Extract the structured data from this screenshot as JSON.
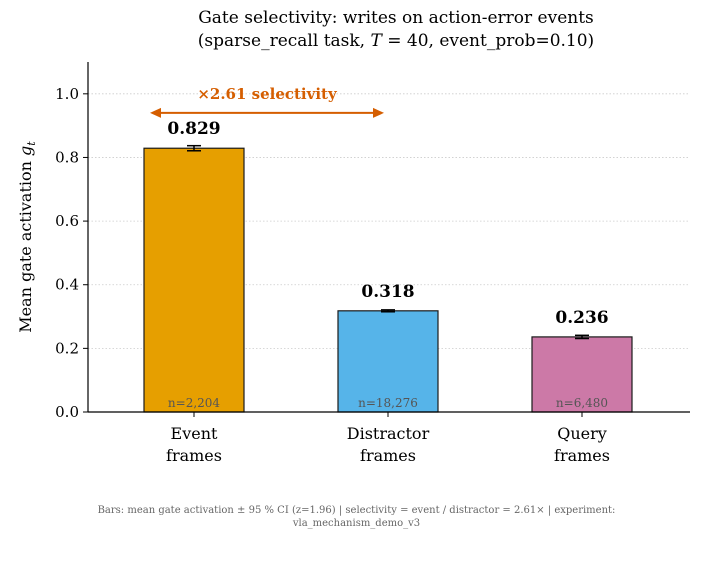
{
  "chart_data": {
    "type": "bar",
    "title_line1": "Gate selectivity: writes on action-error events",
    "title_line2_prefix": "(sparse_recall task, ",
    "title_line2_var": "T",
    "title_line2_suffix": " = 40, event_prob=0.10)",
    "ylabel": "Mean gate activation ",
    "ylabel_var": "g",
    "ylabel_sub": "t",
    "ylim": [
      0,
      1.1
    ],
    "yticks": [
      0.0,
      0.2,
      0.4,
      0.6,
      0.8,
      1.0
    ],
    "ytick_labels": [
      "0.0",
      "0.2",
      "0.4",
      "0.6",
      "0.8",
      "1.0"
    ],
    "grid": "horizontal dotted",
    "bars": [
      {
        "category_line1": "Event",
        "category_line2": "frames",
        "value": 0.829,
        "value_label": "0.829",
        "ci": 0.008,
        "n_label": "n=2,204",
        "color": "#E69F00"
      },
      {
        "category_line1": "Distractor",
        "category_line2": "frames",
        "value": 0.318,
        "value_label": "0.318",
        "ci": 0.003,
        "n_label": "n=18,276",
        "color": "#56B4E9"
      },
      {
        "category_line1": "Query",
        "category_line2": "frames",
        "value": 0.236,
        "value_label": "0.236",
        "ci": 0.005,
        "n_label": "n=6,480",
        "color": "#CC79A7"
      }
    ],
    "annotation": {
      "text": "×2.61 selectivity",
      "color": "#D55E00",
      "y": 0.94
    }
  },
  "caption": {
    "line1": "Bars: mean gate activation ± 95 % CI (z=1.96)  |  selectivity = event / distractor = 2.61×  |  experiment:",
    "line2": "vla_mechanism_demo_v3"
  }
}
